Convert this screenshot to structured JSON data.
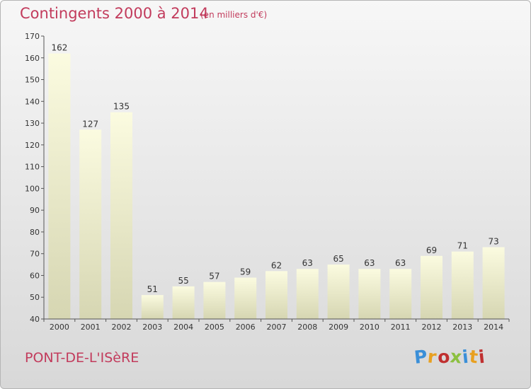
{
  "header": {
    "title": "Contingents 2000 à 2014",
    "subtitle": "(en milliers d'€)"
  },
  "footer": {
    "commune": "PONT-DE-L'ISèRE",
    "logo": {
      "letters": [
        "P",
        "r",
        "o",
        "x",
        "i",
        "t",
        "i"
      ],
      "colors": [
        "#3a8fd8",
        "#e8a020",
        "#c03030",
        "#8cc040",
        "#3a8fd8",
        "#e8a020",
        "#c03030"
      ]
    }
  },
  "chart_data": {
    "type": "bar",
    "title": "Contingents 2000 à 2014",
    "subtitle": "(en milliers d'€)",
    "categories": [
      "2000",
      "2001",
      "2002",
      "2003",
      "2004",
      "2005",
      "2006",
      "2007",
      "2008",
      "2009",
      "2010",
      "2011",
      "2012",
      "2013",
      "2014"
    ],
    "values": [
      162,
      127,
      135,
      51,
      55,
      57,
      59,
      62,
      63,
      65,
      63,
      63,
      69,
      71,
      73
    ],
    "ylim": [
      40,
      170
    ],
    "yticks": [
      40,
      50,
      60,
      70,
      80,
      90,
      100,
      110,
      120,
      130,
      140,
      150,
      160,
      170
    ],
    "grid": false,
    "data_labels": true,
    "colors": {
      "bar_top": "#fbfbe0",
      "bar_bottom": "#d6d6b2",
      "text": "#c23b5c"
    }
  }
}
